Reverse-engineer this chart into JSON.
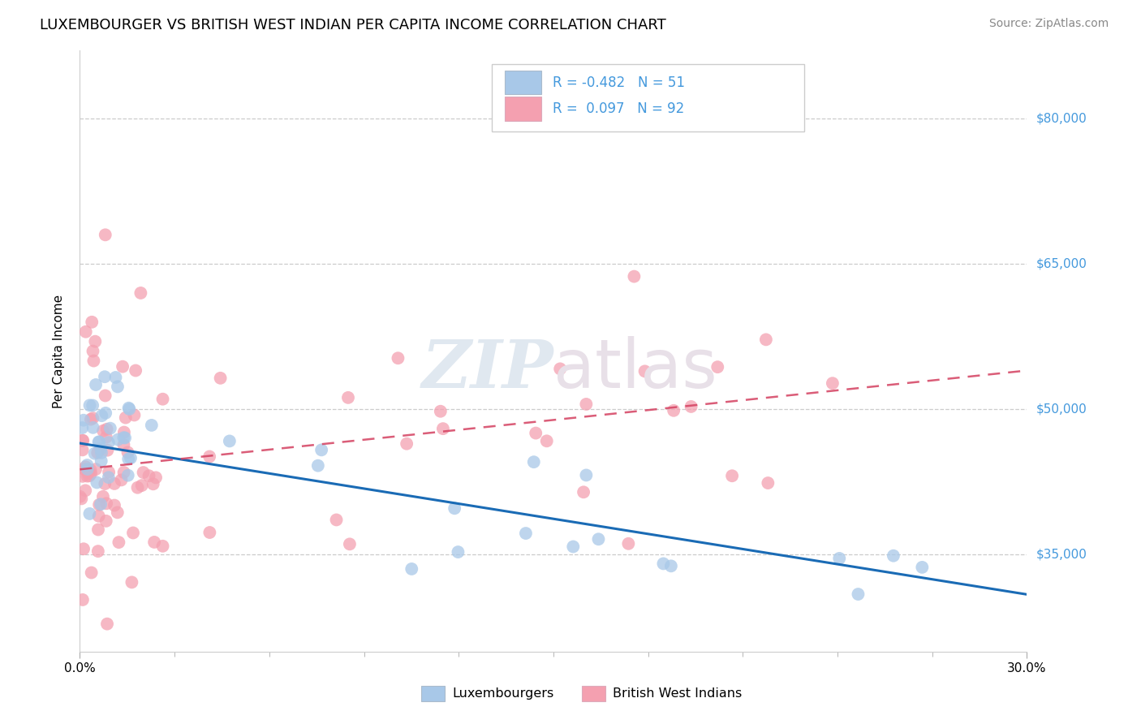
{
  "title": "LUXEMBOURGER VS BRITISH WEST INDIAN PER CAPITA INCOME CORRELATION CHART",
  "source": "Source: ZipAtlas.com",
  "ylabel": "Per Capita Income",
  "xlim": [
    0.0,
    0.3
  ],
  "ylim": [
    25000,
    87000
  ],
  "ytick_values": [
    35000,
    50000,
    65000,
    80000
  ],
  "color_blue": "#a8c8e8",
  "color_pink": "#f4a0b0",
  "line_color_blue": "#1a6bb5",
  "line_color_pink": "#d44060",
  "title_fontsize": 13,
  "axis_label_fontsize": 11,
  "tick_fontsize": 11,
  "source_fontsize": 10,
  "ytick_color": "#4499dd",
  "background_color": "#ffffff",
  "lux_intercept": 46500,
  "lux_slope": -52000,
  "bwi_intercept": 43500,
  "bwi_slope": 35000
}
